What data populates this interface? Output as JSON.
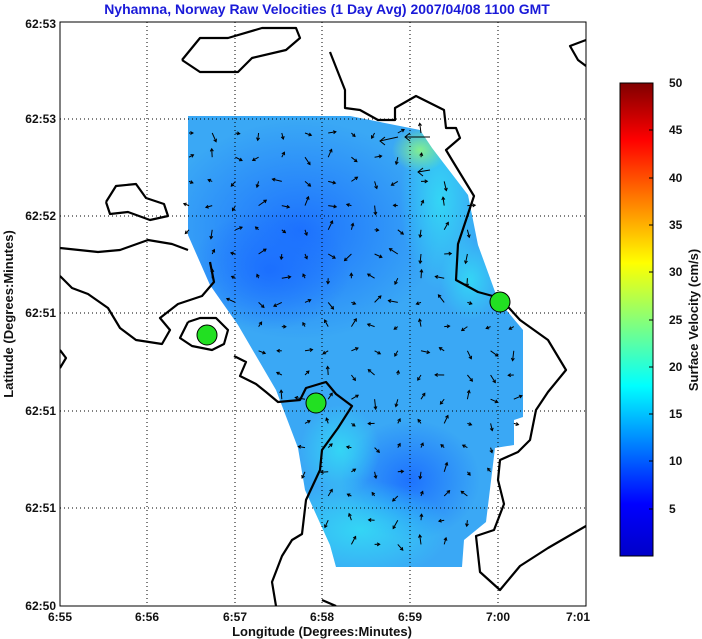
{
  "title": "Nyhamna, Norway Raw Velocities (1 Day Avg) 2007/04/08 1100 GMT",
  "x_axis": {
    "label": "Longitude (Degrees:Minutes)",
    "ticks": [
      "6:55",
      "6:56",
      "6:57",
      "6:58",
      "6:59",
      "7:00",
      "7:01"
    ]
  },
  "y_axis": {
    "label": "Latitude (Degrees:Minutes)",
    "ticks": [
      "62:50",
      "62:51",
      "62:51",
      "62:51",
      "62:52",
      "62:53",
      "62:53"
    ]
  },
  "colorbar": {
    "label": "Surface Velocity (cm/s)",
    "ticks": [
      "5",
      "10",
      "15",
      "20",
      "25",
      "30",
      "35",
      "40",
      "45",
      "50"
    ],
    "range": [
      0,
      50
    ],
    "colormap": "jet",
    "colors": [
      "#00008f",
      "#0000ff",
      "#00ffff",
      "#ffff00",
      "#ff0000",
      "#800000"
    ]
  },
  "grid": "dotted",
  "coastline_color": "#000000",
  "site_marker_color": "#22e022",
  "vector_color": "#000000",
  "site_markers_count": 3
}
